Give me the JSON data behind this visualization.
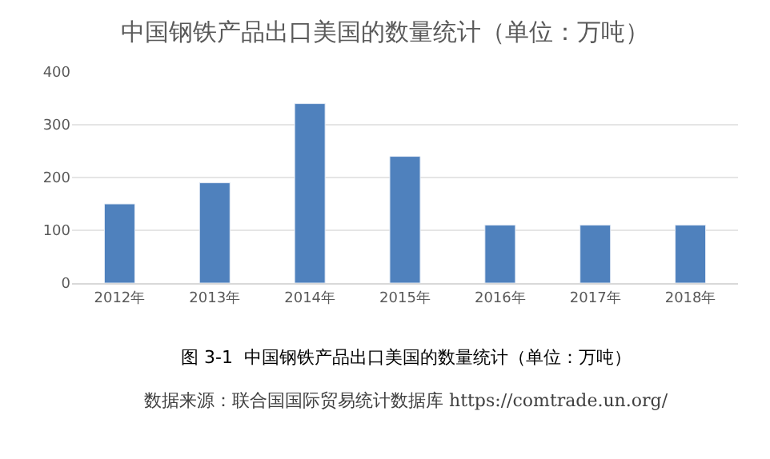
{
  "chart_data": {
    "type": "bar",
    "title": "中国钢铁产品出口美国的数量统计（单位：万吨）",
    "categories": [
      "2012年",
      "2013年",
      "2014年",
      "2015年",
      "2016年",
      "2017年",
      "2018年"
    ],
    "values": [
      150,
      190,
      340,
      240,
      110,
      110,
      110
    ],
    "color": "#4f81bd",
    "ylim": [
      0,
      400
    ],
    "yticks": [
      0,
      100,
      200,
      300,
      400
    ],
    "grid": "y",
    "annotations": [
      "图 3-1  中国钢铁产品出口美国的数量统计（单位：万吨）",
      "数据来源：联合国国际贸易统计数据库 https://comtrade.un.org/"
    ]
  }
}
